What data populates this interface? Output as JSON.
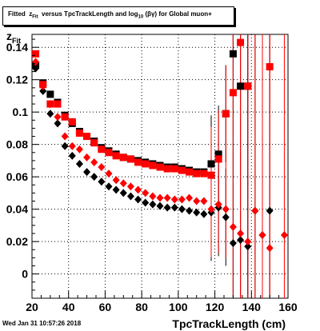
{
  "title_prefix": "Fitted",
  "title_rest": "versus TpcTrackLength and log",
  "title_end": "(βγ) for Global muon+",
  "timestamp": "Wed Jan 31 10:57:26 2018",
  "chart_data": {
    "type": "scatter",
    "title": "Fitted z_Fit versus TpcTrackLength and log10(βγ) for Global muon+",
    "xlabel": "TpcTrackLength (cm)",
    "ylabel": "z_Fit",
    "xlim": [
      20,
      160
    ],
    "ylim": [
      -0.015,
      0.148
    ],
    "xticks": [
      20,
      40,
      60,
      80,
      100,
      120,
      140,
      160
    ],
    "yticks": [
      0,
      0.02,
      0.04,
      0.06,
      0.08,
      0.1,
      0.12,
      0.14
    ],
    "grid": true,
    "series": [
      {
        "marker": "square",
        "color": "#000000",
        "x": [
          22,
          26,
          30,
          34,
          38,
          42,
          46,
          50,
          54,
          58,
          62,
          66,
          70,
          74,
          78,
          82,
          86,
          90,
          94,
          98,
          102,
          106,
          110,
          114,
          118,
          122,
          126,
          130,
          134,
          138
        ],
        "y": [
          0.129,
          0.118,
          0.111,
          0.106,
          0.098,
          0.093,
          0.088,
          0.085,
          0.082,
          0.078,
          0.076,
          0.074,
          0.072,
          0.071,
          0.07,
          0.069,
          0.068,
          0.067,
          0.066,
          0.066,
          0.065,
          0.064,
          0.063,
          0.063,
          0.068,
          0.074,
          0.099,
          0.136,
          0.116,
          0.116
        ]
      },
      {
        "marker": "square",
        "color": "#ff0000",
        "x": [
          22,
          26,
          30,
          34,
          38,
          42,
          46,
          50,
          54,
          58,
          62,
          66,
          70,
          74,
          78,
          82,
          86,
          90,
          94,
          98,
          102,
          106,
          110,
          114,
          118,
          122,
          126,
          130,
          134,
          138,
          150
        ],
        "y": [
          0.136,
          0.117,
          0.105,
          0.105,
          0.097,
          0.094,
          0.087,
          0.085,
          0.081,
          0.077,
          0.075,
          0.073,
          0.072,
          0.071,
          0.069,
          0.068,
          0.067,
          0.066,
          0.065,
          0.065,
          0.064,
          0.063,
          0.062,
          0.062,
          0.061,
          0.071,
          0.099,
          0.112,
          0.143,
          0.116,
          0.128
        ]
      },
      {
        "marker": "diamond",
        "color": "#000000",
        "x": [
          22,
          26,
          30,
          34,
          38,
          42,
          46,
          50,
          54,
          58,
          62,
          66,
          70,
          74,
          78,
          82,
          86,
          90,
          94,
          98,
          102,
          106,
          110,
          114,
          118,
          122,
          126,
          130,
          134,
          138,
          142,
          146,
          150
        ],
        "y": [
          0.127,
          0.113,
          0.099,
          0.093,
          0.079,
          0.073,
          0.068,
          0.063,
          0.06,
          0.057,
          0.054,
          0.052,
          0.05,
          0.048,
          0.046,
          0.044,
          0.043,
          0.042,
          0.041,
          0.041,
          0.04,
          0.039,
          0.038,
          0.037,
          0.038,
          0.041,
          0.035,
          0.019,
          0.021,
          0.017,
          0.039,
          0.024,
          0.039
        ]
      },
      {
        "marker": "diamond",
        "color": "#ff0000",
        "x": [
          22,
          26,
          30,
          34,
          38,
          42,
          46,
          50,
          54,
          58,
          62,
          66,
          70,
          74,
          78,
          82,
          86,
          90,
          94,
          98,
          102,
          106,
          110,
          114,
          118,
          122,
          126,
          130,
          134,
          138,
          142,
          146,
          150,
          158
        ],
        "y": [
          0.131,
          0.116,
          0.105,
          0.097,
          0.085,
          0.079,
          0.077,
          0.072,
          0.069,
          0.066,
          0.062,
          0.058,
          0.056,
          0.054,
          0.052,
          0.05,
          0.048,
          0.047,
          0.047,
          0.046,
          0.046,
          0.047,
          0.045,
          0.045,
          0.04,
          0.043,
          0.04,
          0.029,
          0.025,
          0.02,
          0.039,
          0.024,
          0.016,
          0.024
        ]
      }
    ]
  }
}
